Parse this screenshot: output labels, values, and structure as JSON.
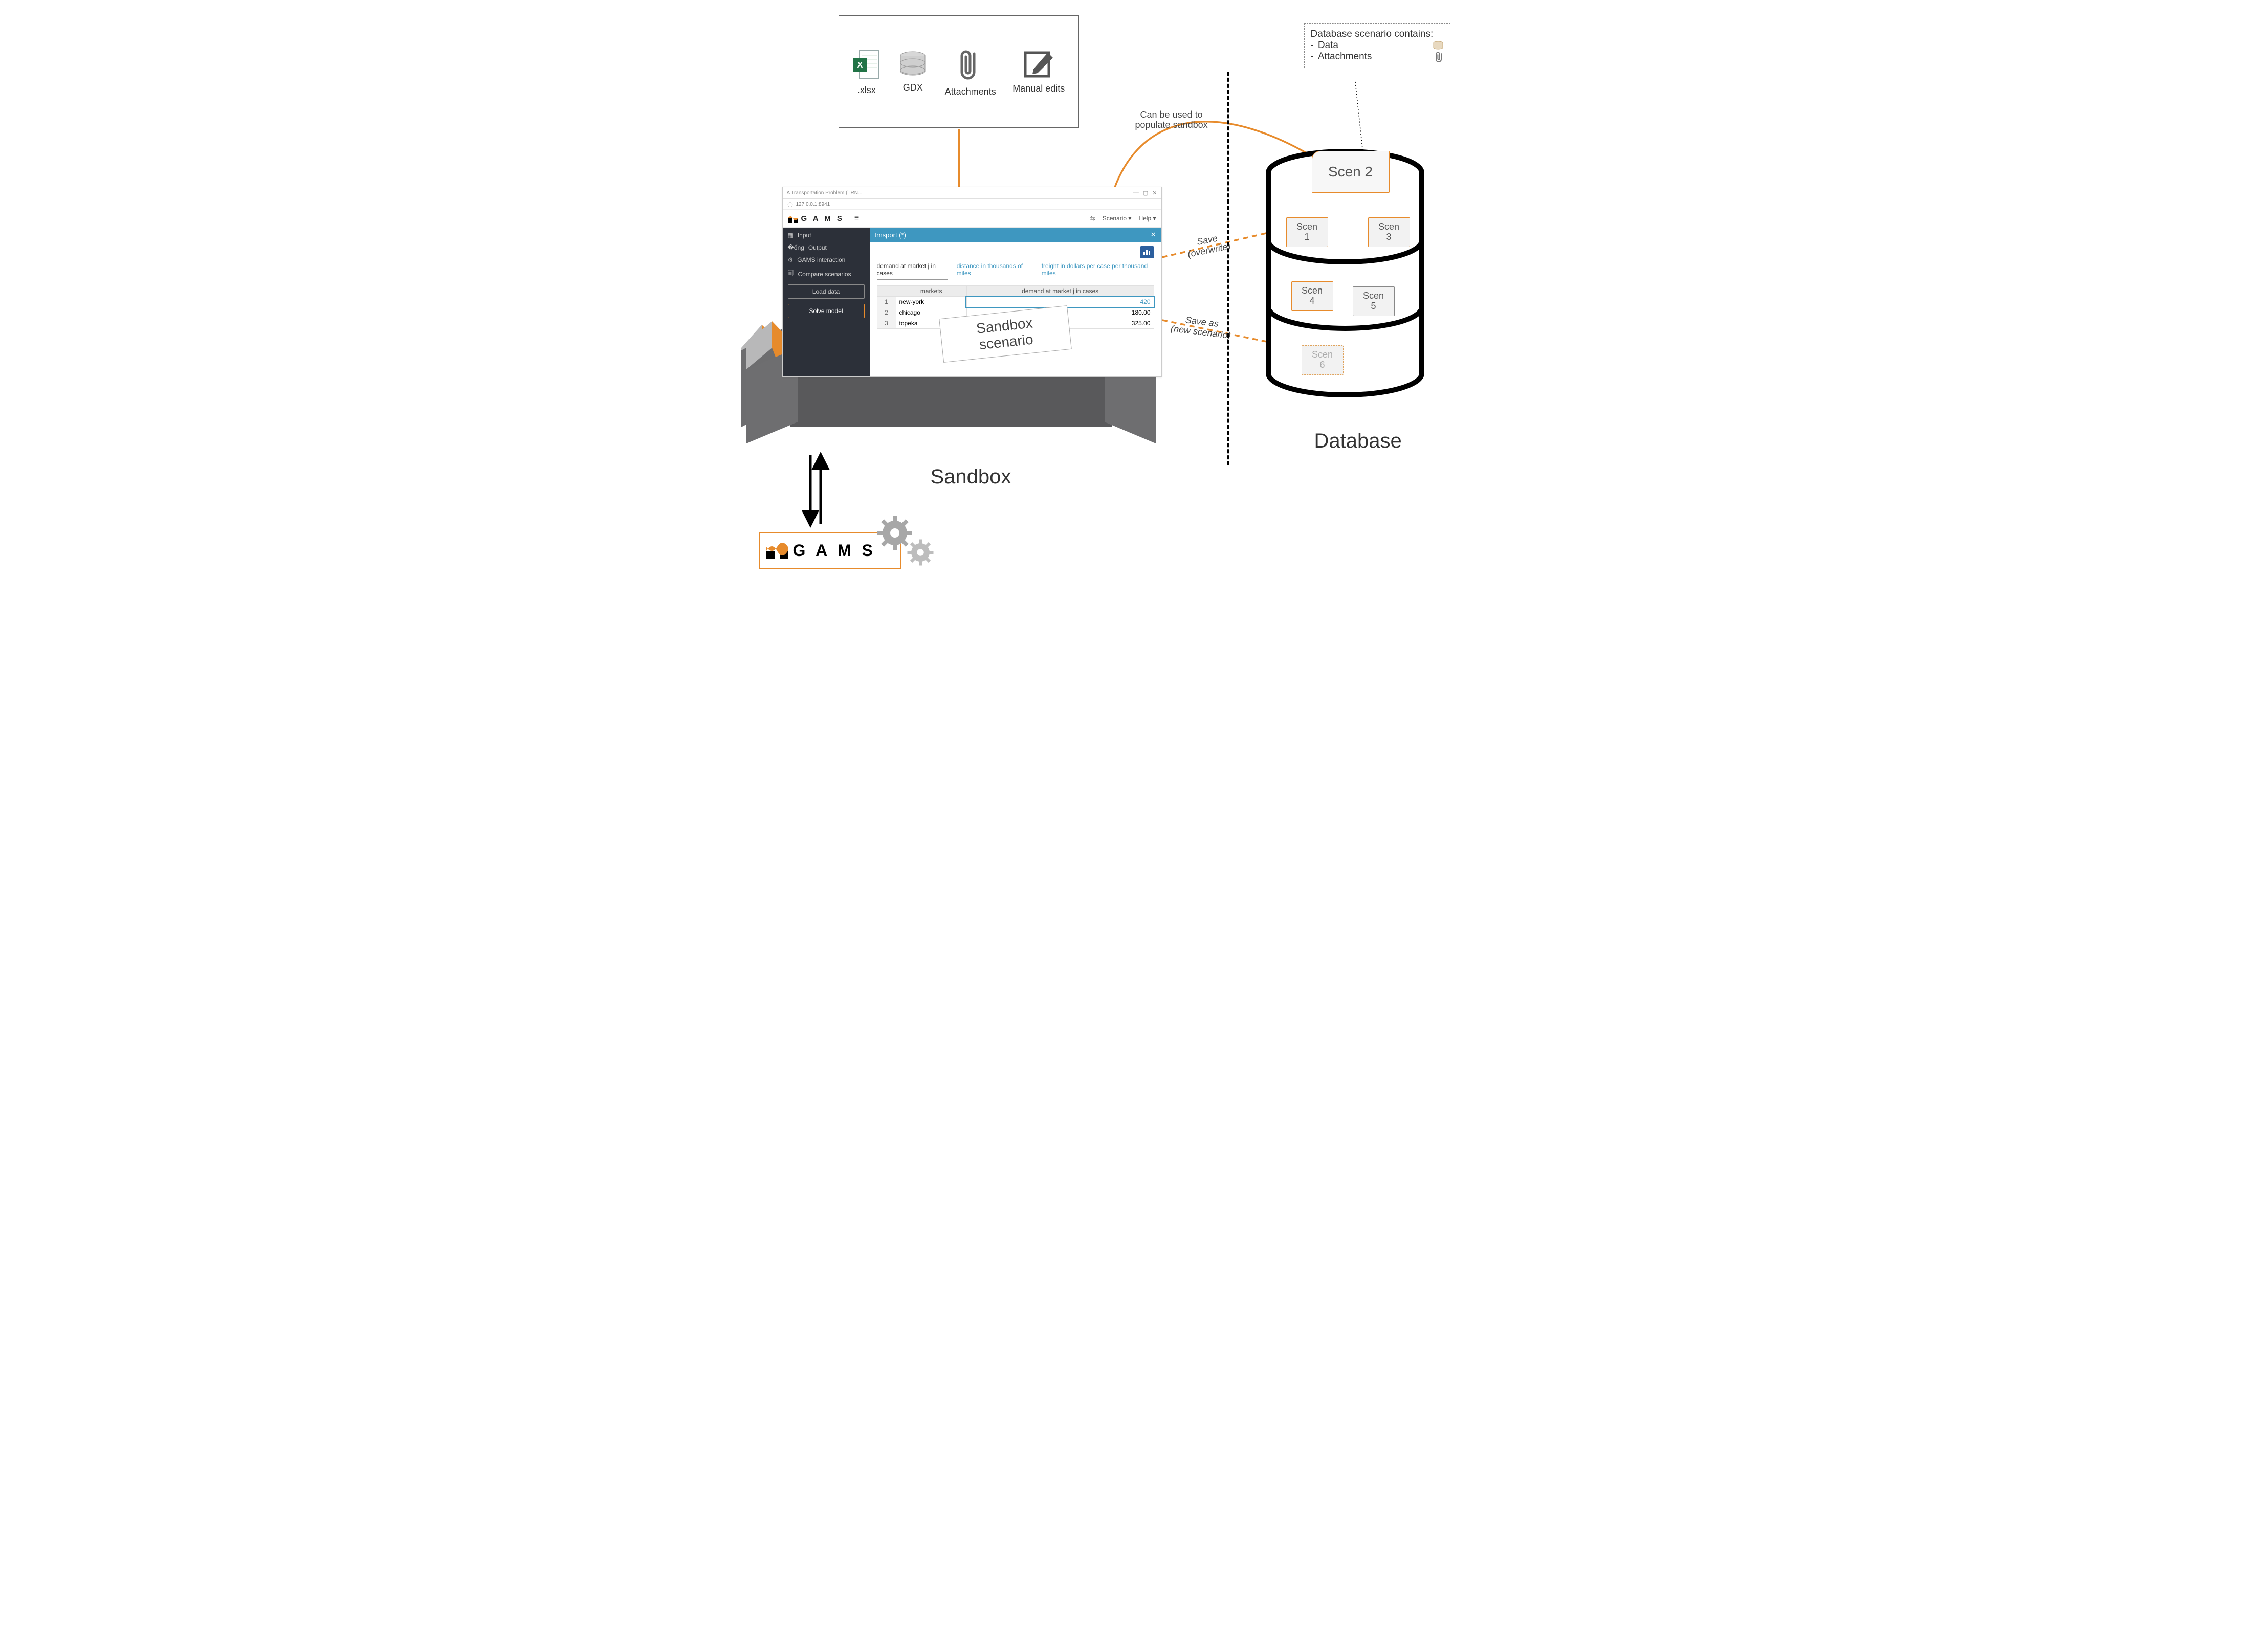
{
  "colors": {
    "accent_orange": "#e78b2c",
    "panel_blue": "#3e97c0",
    "sidebar_bg": "#2c3039",
    "box_gray": "#59595b",
    "box_light": "#b8b8b9",
    "gear_gray": "#9f9f9f",
    "excel_green": "#217346"
  },
  "inputs": {
    "xlsx": ".xlsx",
    "gdx": "GDX",
    "attachments": "Attachments",
    "manual": "Manual edits"
  },
  "populate_label": "Can be used to\npopulate sandbox",
  "save_label": "Save\n(overwrite)",
  "saveas_label": "Save as\n(new scenario)",
  "sandbox_label": "Sandbox",
  "database_label": "Database",
  "sandbox_scenario": "Sandbox scenario",
  "gams_brand": "G A M S",
  "db_info": {
    "title": "Database scenario contains:",
    "item1": "Data",
    "item2": "Attachments"
  },
  "app": {
    "tab_title": "A Transportation Problem (TRN...",
    "url": "127.0.0.1:8941",
    "brand": "G A M S",
    "menu_scenario": "Scenario",
    "menu_help": "Help",
    "sidebar": {
      "input": "Input",
      "output": "Output",
      "gams_interaction": "GAMS interaction",
      "compare": "Compare scenarios",
      "load_data": "Load data",
      "solve_model": "Solve model"
    },
    "panel_title": "trnsport (*)",
    "tabs": {
      "t1": "demand at market j in cases",
      "t2": "distance in thousands of miles",
      "t3": "freight in dollars per case per thousand miles"
    },
    "table": {
      "col_markets": "markets",
      "col_demand": "demand at market j in cases",
      "rows": [
        {
          "n": "1",
          "market": "new-york",
          "demand": "420",
          "editing": true
        },
        {
          "n": "2",
          "market": "chicago",
          "demand": "180.00"
        },
        {
          "n": "3",
          "market": "topeka",
          "demand": "325.00"
        }
      ]
    }
  },
  "scenarios": {
    "s2": "Scen 2",
    "s1": "Scen\n1",
    "s3": "Scen\n3",
    "s4": "Scen\n4",
    "s5": "Scen\n5",
    "s6": "Scen\n6"
  }
}
